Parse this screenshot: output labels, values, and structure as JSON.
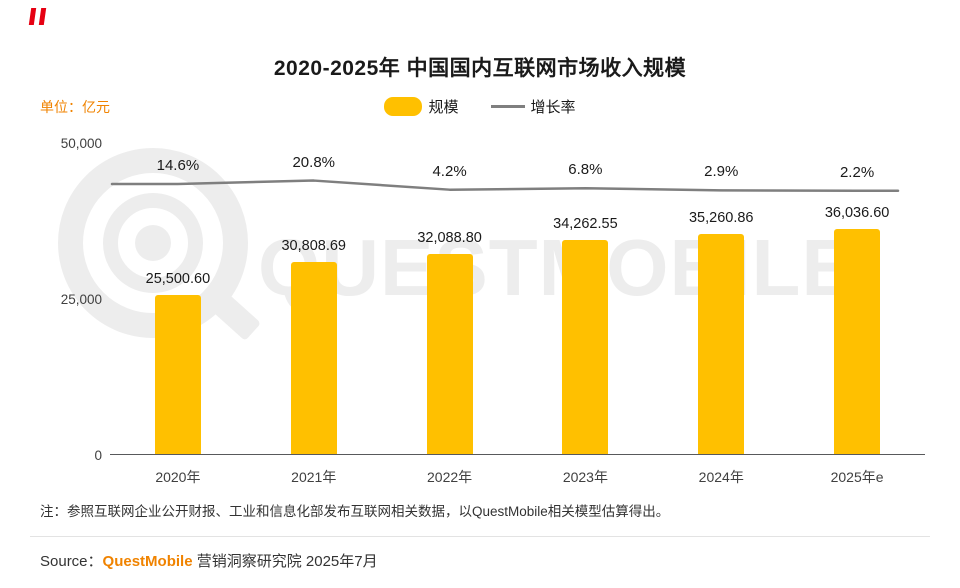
{
  "header": {
    "title": "2020-2025年 中国国内互联网市场收入规模",
    "unit_label": "单位：亿元"
  },
  "legend": {
    "bar_label": "规模",
    "line_label": "增长率"
  },
  "chart_data": {
    "type": "bar",
    "title": "2020-2025年 中国国内互联网市场收入规模",
    "categories": [
      "2020年",
      "2021年",
      "2022年",
      "2023年",
      "2024年",
      "2025年e"
    ],
    "series": [
      {
        "name": "规模",
        "type": "bar",
        "values": [
          25500.6,
          30808.69,
          32088.8,
          34262.55,
          35260.86,
          36036.6
        ],
        "labels": [
          "25,500.60",
          "30,808.69",
          "32,088.80",
          "34,262.55",
          "35,260.86",
          "36,036.60"
        ],
        "color": "#FFC000"
      },
      {
        "name": "增长率",
        "type": "line",
        "values": [
          14.6,
          20.8,
          4.2,
          6.8,
          2.9,
          2.2
        ],
        "labels": [
          "14.6%",
          "20.8%",
          "4.2%",
          "6.8%",
          "2.9%",
          "2.2%"
        ],
        "color": "#7F7F7F"
      }
    ],
    "xlabel": "",
    "ylabel": "亿元",
    "ylim": [
      0,
      50000
    ],
    "yticks": [
      "0",
      "25,000",
      "50,000"
    ],
    "grid": false,
    "legend_position": "top"
  },
  "watermark": {
    "text": "QUESTMOBILE"
  },
  "footer": {
    "note": "注：参照互联网企业公开财报、工业和信息化部发布互联网相关数据，以QuestMobile相关模型估算得出。",
    "source_prefix": "Source：",
    "source_brand": "QuestMobile",
    "source_suffix": " 营销洞察研究院 2025年7月"
  },
  "colors": {
    "bar": "#FFC000",
    "line": "#7F7F7F",
    "accent_red": "#E60012",
    "orange": "#F08300",
    "watermark": "#EDEDED"
  }
}
